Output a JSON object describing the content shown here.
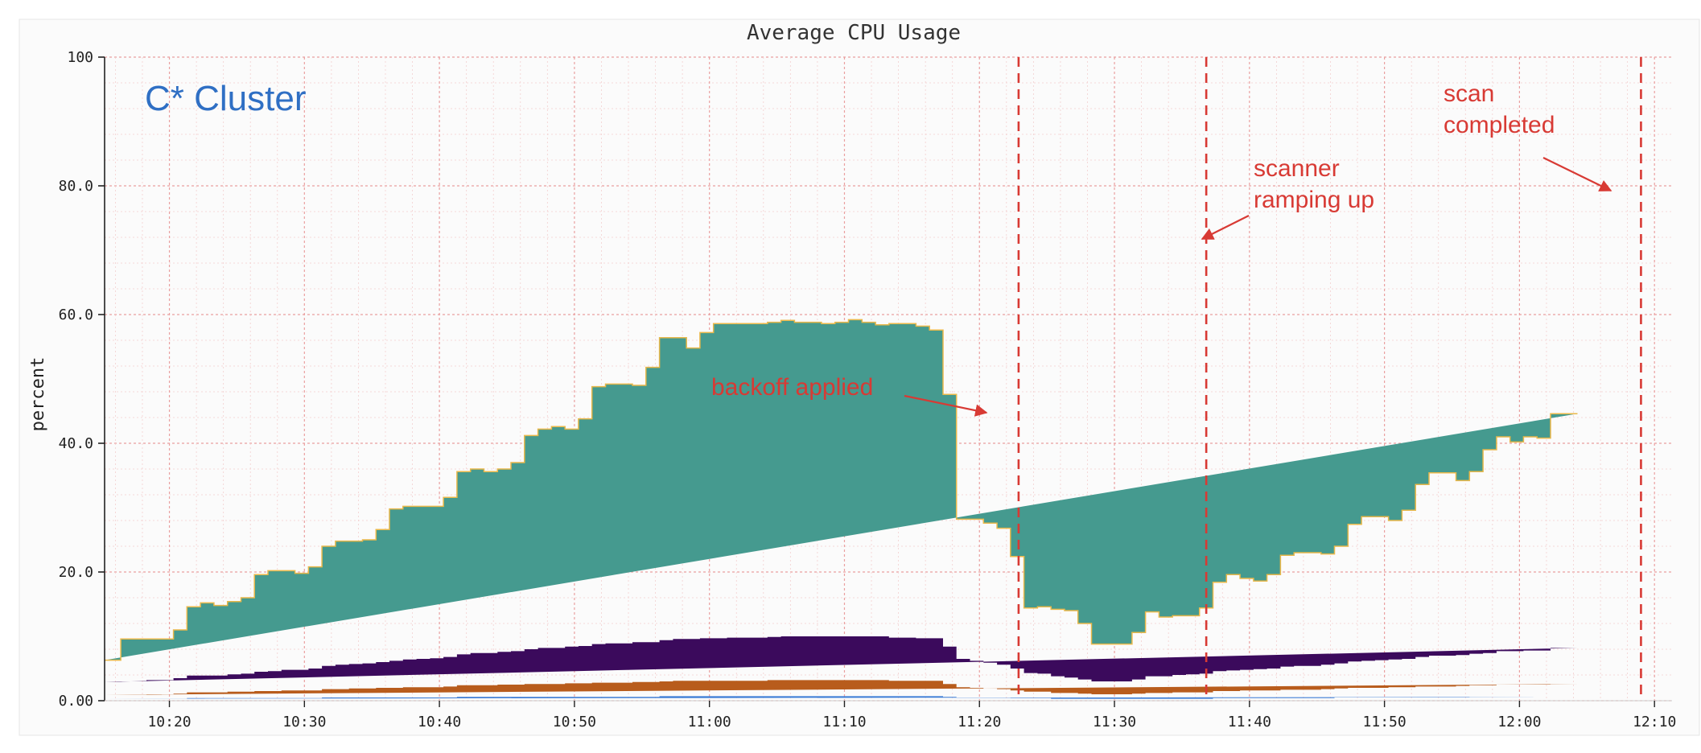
{
  "chart_data": {
    "type": "area",
    "title": "Average CPU Usage",
    "ylabel": "percent",
    "xlabel": "",
    "ylim": [
      0,
      100
    ],
    "y_ticks": [
      "0.00",
      "20.0",
      "40.0",
      "60.0",
      "80.0",
      "100"
    ],
    "x_ticks": [
      "10:20",
      "10:30",
      "10:40",
      "10:50",
      "11:00",
      "11:10",
      "11:20",
      "11:30",
      "11:40",
      "11:50",
      "12:00",
      "12:10"
    ],
    "x_tick_minutes": [
      20,
      30,
      40,
      50,
      60,
      70,
      80,
      90,
      100,
      110,
      120,
      130
    ],
    "x_range_minutes": [
      15.2,
      131.3
    ],
    "grid": true,
    "step": true,
    "colors": {
      "steal": "#3a7bd5",
      "wait": "#b85c1c",
      "system": "#3b0a5c",
      "user": "#459a8f",
      "edge": "#e9b84a",
      "annotation": "#d83a34",
      "label_blue": "#2f6fc4",
      "grid": "#f0b3b3"
    },
    "x_minutes": [
      15.2,
      16.4,
      17.3,
      18.3,
      19.3,
      20.3,
      21.3,
      22.3,
      23.3,
      24.3,
      25.3,
      26.3,
      27.3,
      28.3,
      29.3,
      30.3,
      31.3,
      32.3,
      33.3,
      34.3,
      35.3,
      36.3,
      37.3,
      38.3,
      39.3,
      40.3,
      41.3,
      42.3,
      43.3,
      44.3,
      45.3,
      46.3,
      47.3,
      48.3,
      49.3,
      50.3,
      51.3,
      52.3,
      53.3,
      54.3,
      55.3,
      56.3,
      57.3,
      58.3,
      59.3,
      60.3,
      61.3,
      62.3,
      63.3,
      64.3,
      65.3,
      66.3,
      67.3,
      68.3,
      69.3,
      70.3,
      71.3,
      72.3,
      73.3,
      74.3,
      75.3,
      76.3,
      77.3,
      78.3,
      79.3,
      80.3,
      81.3,
      82.3,
      83.3,
      84.3,
      85.3,
      86.3,
      87.3,
      88.3,
      89.3,
      90.3,
      91.3,
      92.3,
      93.3,
      94.3,
      95.3,
      96.3,
      97.3,
      98.3,
      99.3,
      100.3,
      101.3,
      102.3,
      103.3,
      104.3,
      105.3,
      106.3,
      107.3,
      108.3,
      109.3,
      110.3,
      111.3,
      112.3,
      113.3,
      114.3,
      115.3,
      116.3,
      117.3,
      118.3,
      119.3,
      120.3,
      121.3,
      122.3,
      123.3,
      124.3,
      125.3,
      126.3,
      127.3,
      128.3,
      129.3,
      130.3
    ],
    "total": [
      6.3,
      9.6,
      9.6,
      9.6,
      9.6,
      11.0,
      14.6,
      15.2,
      14.8,
      15.4,
      16.0,
      19.6,
      20.2,
      20.2,
      19.8,
      20.8,
      24.0,
      24.8,
      24.8,
      25.0,
      26.6,
      29.8,
      30.2,
      30.2,
      30.2,
      31.6,
      35.6,
      36.0,
      35.6,
      36.0,
      37.0,
      41.2,
      42.2,
      42.6,
      42.2,
      43.8,
      48.8,
      49.2,
      49.2,
      49.0,
      51.8,
      56.4,
      56.4,
      54.8,
      57.2,
      58.6,
      58.6,
      58.6,
      58.6,
      58.8,
      59.1,
      58.8,
      58.8,
      58.6,
      58.8,
      59.2,
      58.8,
      58.4,
      58.6,
      58.6,
      58.2,
      57.6,
      47.6,
      28.2,
      28.2,
      27.6,
      26.8,
      22.4,
      14.4,
      14.6,
      14.2,
      14.0,
      12.0,
      8.8,
      8.8,
      8.8,
      10.6,
      13.8,
      13.0,
      13.2,
      13.2,
      14.4,
      18.4,
      19.6,
      19.0,
      18.6,
      19.6,
      22.6,
      23.0,
      23.0,
      22.8,
      24.0,
      27.4,
      28.6,
      28.6,
      28.0,
      29.6,
      33.6,
      35.4,
      35.4,
      34.2,
      35.6,
      39.0,
      41.0,
      40.2,
      41.0,
      40.8,
      44.6,
      44.6
    ],
    "system": [
      2.0,
      2.1,
      2.1,
      2.2,
      2.2,
      2.4,
      2.6,
      2.6,
      2.6,
      2.7,
      2.8,
      3.0,
      3.1,
      3.2,
      3.2,
      3.4,
      3.6,
      3.8,
      3.8,
      3.9,
      4.0,
      4.2,
      4.3,
      4.4,
      4.5,
      4.6,
      4.8,
      5.0,
      5.0,
      5.1,
      5.2,
      5.4,
      5.6,
      5.6,
      5.7,
      5.8,
      6.0,
      6.1,
      6.1,
      6.2,
      6.2,
      6.4,
      6.5,
      6.5,
      6.6,
      6.6,
      6.7,
      6.7,
      6.7,
      6.7,
      6.8,
      6.8,
      6.8,
      6.8,
      6.8,
      6.8,
      6.8,
      6.8,
      6.7,
      6.7,
      6.6,
      6.6,
      5.8,
      4.4,
      4.2,
      4.0,
      3.8,
      3.4,
      2.9,
      2.8,
      2.6,
      2.4,
      2.2,
      2.0,
      2.0,
      2.0,
      2.2,
      2.6,
      2.6,
      2.7,
      2.8,
      2.9,
      3.1,
      3.2,
      3.2,
      3.3,
      3.4,
      3.6,
      3.7,
      3.7,
      3.8,
      3.9,
      4.1,
      4.2,
      4.3,
      4.3,
      4.4,
      4.6,
      4.8,
      4.8,
      4.8,
      4.9,
      5.0,
      5.2,
      5.2,
      5.3,
      5.3,
      5.6,
      5.6
    ],
    "wait": [
      0.6,
      0.6,
      0.6,
      0.7,
      0.7,
      0.8,
      0.9,
      0.9,
      0.9,
      1.0,
      1.0,
      1.1,
      1.1,
      1.2,
      1.2,
      1.2,
      1.3,
      1.3,
      1.4,
      1.4,
      1.5,
      1.5,
      1.6,
      1.6,
      1.6,
      1.7,
      1.8,
      1.8,
      1.8,
      1.9,
      1.9,
      2.0,
      2.0,
      2.0,
      2.1,
      2.1,
      2.2,
      2.2,
      2.2,
      2.3,
      2.3,
      2.3,
      2.4,
      2.4,
      2.4,
      2.4,
      2.4,
      2.4,
      2.4,
      2.5,
      2.5,
      2.5,
      2.5,
      2.5,
      2.5,
      2.5,
      2.5,
      2.5,
      2.4,
      2.4,
      2.4,
      2.4,
      2.0,
      1.6,
      1.5,
      1.4,
      1.3,
      1.2,
      1.0,
      1.0,
      0.9,
      0.9,
      0.8,
      0.7,
      0.7,
      0.7,
      0.8,
      0.9,
      0.9,
      1.0,
      1.0,
      1.0,
      1.1,
      1.1,
      1.2,
      1.2,
      1.2,
      1.3,
      1.3,
      1.3,
      1.4,
      1.4,
      1.5,
      1.5,
      1.5,
      1.6,
      1.6,
      1.7,
      1.7,
      1.7,
      1.8,
      1.8,
      1.8,
      1.9,
      1.9,
      1.9,
      1.9,
      2.0,
      2.0
    ],
    "steal": [
      0.3,
      0.3,
      0.3,
      0.3,
      0.3,
      0.3,
      0.4,
      0.4,
      0.4,
      0.4,
      0.4,
      0.4,
      0.4,
      0.4,
      0.4,
      0.4,
      0.5,
      0.5,
      0.5,
      0.5,
      0.5,
      0.5,
      0.5,
      0.5,
      0.5,
      0.5,
      0.6,
      0.6,
      0.6,
      0.6,
      0.6,
      0.6,
      0.6,
      0.6,
      0.6,
      0.6,
      0.6,
      0.6,
      0.6,
      0.6,
      0.6,
      0.7,
      0.7,
      0.7,
      0.7,
      0.7,
      0.7,
      0.7,
      0.7,
      0.7,
      0.7,
      0.7,
      0.7,
      0.7,
      0.7,
      0.7,
      0.7,
      0.7,
      0.7,
      0.7,
      0.7,
      0.7,
      0.6,
      0.5,
      0.5,
      0.5,
      0.5,
      0.4,
      0.4,
      0.4,
      0.3,
      0.3,
      0.3,
      0.3,
      0.3,
      0.3,
      0.3,
      0.3,
      0.3,
      0.3,
      0.3,
      0.3,
      0.4,
      0.4,
      0.4,
      0.4,
      0.4,
      0.4,
      0.4,
      0.4,
      0.4,
      0.5,
      0.5,
      0.5,
      0.5,
      0.5,
      0.5,
      0.5,
      0.5,
      0.5,
      0.5,
      0.6,
      0.6,
      0.6,
      0.6,
      0.6,
      0.6,
      0.6,
      0.6
    ],
    "markers_minutes": [
      82.9,
      96.8,
      129.0
    ],
    "annotations": {
      "cluster_label": "C* Cluster",
      "backoff": "backoff applied",
      "scanner_line1": "scanner",
      "scanner_line2": "ramping up",
      "scan_line1": "scan",
      "scan_line2": "completed"
    }
  }
}
